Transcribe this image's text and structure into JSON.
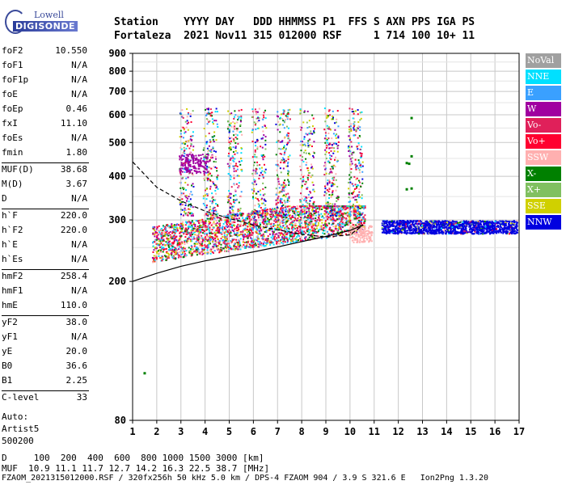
{
  "logo": {
    "line1": "Lowell",
    "line2": "DIGISONDE"
  },
  "header": {
    "row1": "Station    YYYY DAY   DDD HHMMSS P1  FFS S AXN PPS IGA PS",
    "row2": "Fortaleza  2021 Nov11 315 012000 RSF     1 714 100 10+ 11"
  },
  "params": [
    {
      "k": "foF2",
      "v": "10.550"
    },
    {
      "k": "foF1",
      "v": "N/A"
    },
    {
      "k": "foF1p",
      "v": "N/A"
    },
    {
      "k": "foE",
      "v": "N/A"
    },
    {
      "k": "foEp",
      "v": "0.46"
    },
    {
      "k": "fxI",
      "v": "11.10"
    },
    {
      "k": "foEs",
      "v": "N/A"
    },
    {
      "k": "fmin",
      "v": "1.80"
    },
    {
      "k": "MUF(D)",
      "v": "38.68"
    },
    {
      "k": "M(D)",
      "v": "3.67"
    },
    {
      "k": "D",
      "v": "N/A"
    },
    {
      "k": "h`F",
      "v": "220.0"
    },
    {
      "k": "h`F2",
      "v": "220.0"
    },
    {
      "k": "h`E",
      "v": "N/A"
    },
    {
      "k": "h`Es",
      "v": "N/A"
    },
    {
      "k": "hmF2",
      "v": "258.4"
    },
    {
      "k": "hmF1",
      "v": "N/A"
    },
    {
      "k": "hmE",
      "v": "110.0"
    },
    {
      "k": "yF2",
      "v": "38.0"
    },
    {
      "k": "yF1",
      "v": "N/A"
    },
    {
      "k": "yE",
      "v": "20.0"
    },
    {
      "k": "B0",
      "v": "36.6"
    },
    {
      "k": "B1",
      "v": "2.25"
    },
    {
      "k": "C-level",
      "v": "33"
    }
  ],
  "auto": {
    "l1": "Auto:",
    "l2": "Artist5",
    "l3": "500200"
  },
  "legend": [
    {
      "label": "NoVal",
      "color": "#a0a0a0"
    },
    {
      "label": "NNE",
      "color": "#00e0ff"
    },
    {
      "label": "E",
      "color": "#3aa0ff"
    },
    {
      "label": "W",
      "color": "#a000a0"
    },
    {
      "label": "Vo-",
      "color": "#e0205a"
    },
    {
      "label": "Vo+",
      "color": "#ff0030"
    },
    {
      "label": "SSW",
      "color": "#ffb0b0"
    },
    {
      "label": "X-",
      "color": "#008000"
    },
    {
      "label": "X+",
      "color": "#80c060"
    },
    {
      "label": "SSE",
      "color": "#d0d000"
    },
    {
      "label": "NNW",
      "color": "#0000e0"
    }
  ],
  "footer": {
    "d_row": "D     100  200  400  600  800 1000 1500 3000 [km]",
    "muf_row": "MUF  10.9 11.1 11.7 12.7 14.2 16.3 22.5 38.7 [MHz]",
    "file_row": "FZAOM_2021315012000.RSF / 320fx256h 50 kHz 5.0 km / DPS-4 FZAOM 904 / 3.9 S 321.6 E   Ion2Png 1.3.20"
  },
  "chart_data": {
    "type": "scatter",
    "xlim": [
      1,
      17
    ],
    "ylim": [
      80,
      900
    ],
    "x_ticks": [
      "1",
      "2",
      "3",
      "4",
      "5",
      "6",
      "7",
      "8",
      "9",
      "10",
      "11",
      "12",
      "13",
      "14",
      "15",
      "16",
      "17"
    ],
    "y_ticks": [
      "80",
      "200",
      "300",
      "400",
      "500",
      "600",
      "700",
      "800",
      "900"
    ],
    "y_tick_values": [
      80,
      200,
      300,
      400,
      500,
      600,
      700,
      800,
      900
    ],
    "y_scale": "log",
    "grid": true,
    "traces": [
      {
        "name": "O-trace band",
        "color": "#e0205a",
        "x": [
          1.8,
          10.6
        ],
        "ymin": 225,
        "ymax": 310
      },
      {
        "name": "X-trace band",
        "color": "#0000e0",
        "x": [
          11.3,
          16.9
        ],
        "ymin": 275,
        "ymax": 300
      },
      {
        "name": "Multihop",
        "color": "#3aa0ff",
        "x": [
          3.0,
          10.0
        ],
        "ymin": 310,
        "ymax": 620
      }
    ],
    "profile_solid": {
      "x": [
        1,
        2,
        3,
        4,
        5,
        6,
        7,
        8,
        9,
        10,
        10.55
      ],
      "y": [
        200,
        211,
        221,
        229,
        236,
        243,
        251,
        260,
        269,
        280,
        290
      ]
    },
    "profile_dashed": {
      "x": [
        1,
        2,
        3,
        4,
        5,
        6,
        7,
        8,
        9,
        10,
        10.55
      ],
      "y": [
        440,
        372,
        340,
        318,
        303,
        290,
        281,
        273,
        268,
        272,
        290
      ]
    }
  }
}
